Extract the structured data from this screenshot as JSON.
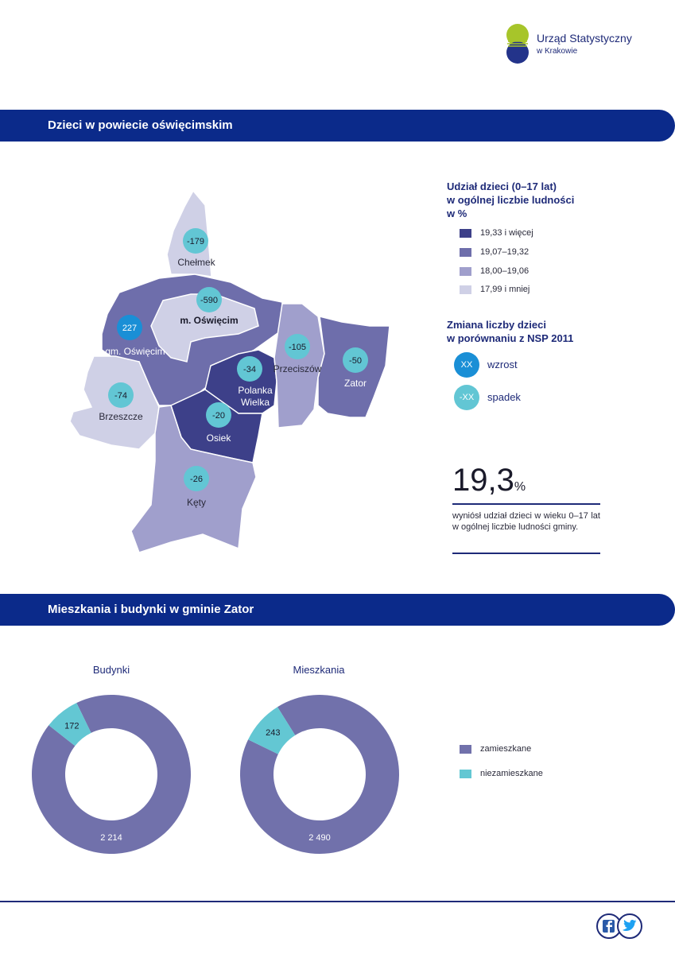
{
  "logo": {
    "line1": "Urząd Statystyczny",
    "line2": "w Krakowie"
  },
  "section1": {
    "title": "Dzieci w powiecie oświęcimskim"
  },
  "map": {
    "regions": [
      {
        "name": "Chełmek",
        "change": "-179",
        "class": "17,99 i mniej"
      },
      {
        "name": "m. Oświęcim",
        "change": "-590",
        "class": "17,99 i mniej"
      },
      {
        "name": "gm. Oświęcim",
        "change": "227",
        "class": "19,07–19,32"
      },
      {
        "name": "Brzeszcze",
        "change": "-74",
        "class": "17,99 i mniej"
      },
      {
        "name": "Polanka Wielka",
        "change": "-34",
        "class": "19,33 i więcej"
      },
      {
        "name": "Przeciszów",
        "change": "-105",
        "class": "18,00–19,06"
      },
      {
        "name": "Zator",
        "change": "-50",
        "class": "19,07–19,32"
      },
      {
        "name": "Osiek",
        "change": "-20",
        "class": "19,33 i więcej"
      },
      {
        "name": "Kęty",
        "change": "-26",
        "class": "18,00–19,06"
      }
    ],
    "labels": {
      "chelmek": "Chełmek",
      "oswiecim_city": "m. Oświęcim",
      "oswiecim_gm": "gm. Oświęcim",
      "brzeszcze": "Brzeszcze",
      "polanka1": "Polanka",
      "polanka2": "Wielka",
      "przeciszow": "Przeciszów",
      "zator": "Zator",
      "osiek": "Osiek",
      "kety": "Kęty"
    },
    "values": {
      "chelmek": "-179",
      "oswiecim_city": "-590",
      "oswiecim_gm": "227",
      "brzeszcze": "-74",
      "polanka": "-34",
      "przeciszow": "-105",
      "zator": "-50",
      "osiek": "-20",
      "kety": "-26"
    }
  },
  "legend": {
    "title1": "Udział dzieci (0–17 lat)",
    "title2": "w ogólnej liczbie ludności",
    "title3": "w %",
    "classes": [
      {
        "label": "19,33 i więcej",
        "color": "#3d4089"
      },
      {
        "label": "19,07–19,32",
        "color": "#6e6eab"
      },
      {
        "label": "18,00–19,06",
        "color": "#a09fcc"
      },
      {
        "label": "17,99 i mniej",
        "color": "#cfd0e6"
      }
    ],
    "change_title1": "Zmiana liczby dzieci",
    "change_title2": "w porównaniu z NSP 2011",
    "increase_symbol": "XX",
    "increase_label": "wzrost",
    "decrease_symbol": "-XX",
    "decrease_label": "spadek",
    "increase_color": "#1a8fd6",
    "decrease_color": "#62c6d4"
  },
  "stat": {
    "value": "19,3",
    "unit": "%",
    "description": "wyniósł udział dzieci w wieku 0–17 lat w ogólnej liczbie ludności gminy."
  },
  "section2": {
    "title": "Mieszkania i budynki w gminie Zator"
  },
  "chart_data": [
    {
      "type": "pie",
      "title": "Budynki",
      "categories": [
        "zamieszkane",
        "niezamieszkane"
      ],
      "values": [
        2214,
        172
      ],
      "value_labels": [
        "2 214",
        "172"
      ],
      "colors": [
        "#7171ab",
        "#63c7d3"
      ]
    },
    {
      "type": "pie",
      "title": "Mieszkania",
      "categories": [
        "zamieszkane",
        "niezamieszkane"
      ],
      "values": [
        2490,
        243
      ],
      "value_labels": [
        "2 490",
        "243"
      ],
      "colors": [
        "#7171ab",
        "#63c7d3"
      ]
    }
  ],
  "donut_legend": [
    {
      "label": "zamieszkane",
      "color": "#7171ab"
    },
    {
      "label": "niezamieszkane",
      "color": "#63c7d3"
    }
  ]
}
